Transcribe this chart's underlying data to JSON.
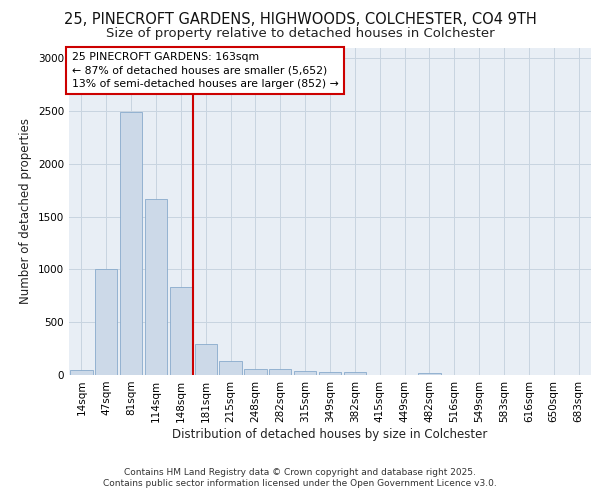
{
  "title_line1": "25, PINECROFT GARDENS, HIGHWOODS, COLCHESTER, CO4 9TH",
  "title_line2": "Size of property relative to detached houses in Colchester",
  "xlabel": "Distribution of detached houses by size in Colchester",
  "ylabel": "Number of detached properties",
  "categories": [
    "14sqm",
    "47sqm",
    "81sqm",
    "114sqm",
    "148sqm",
    "181sqm",
    "215sqm",
    "248sqm",
    "282sqm",
    "315sqm",
    "349sqm",
    "382sqm",
    "415sqm",
    "449sqm",
    "482sqm",
    "516sqm",
    "549sqm",
    "583sqm",
    "616sqm",
    "650sqm",
    "683sqm"
  ],
  "values": [
    50,
    1005,
    2490,
    1670,
    835,
    295,
    135,
    60,
    55,
    40,
    30,
    25,
    0,
    0,
    20,
    0,
    0,
    0,
    0,
    0,
    0
  ],
  "bar_color": "#ccd9e8",
  "bar_edge_color": "#88aacc",
  "grid_color": "#c8d4e0",
  "background_color": "#e8eef5",
  "vline_color": "#cc0000",
  "annotation_text": "25 PINECROFT GARDENS: 163sqm\n← 87% of detached houses are smaller (5,652)\n13% of semi-detached houses are larger (852) →",
  "annotation_box_color": "#cc0000",
  "footnote_line1": "Contains HM Land Registry data © Crown copyright and database right 2025.",
  "footnote_line2": "Contains public sector information licensed under the Open Government Licence v3.0.",
  "ylim": [
    0,
    3100
  ],
  "yticks": [
    0,
    500,
    1000,
    1500,
    2000,
    2500,
    3000
  ],
  "title_fontsize": 10.5,
  "subtitle_fontsize": 9.5,
  "tick_fontsize": 7.5,
  "label_fontsize": 8.5,
  "annotation_fontsize": 7.8,
  "footnote_fontsize": 6.5
}
